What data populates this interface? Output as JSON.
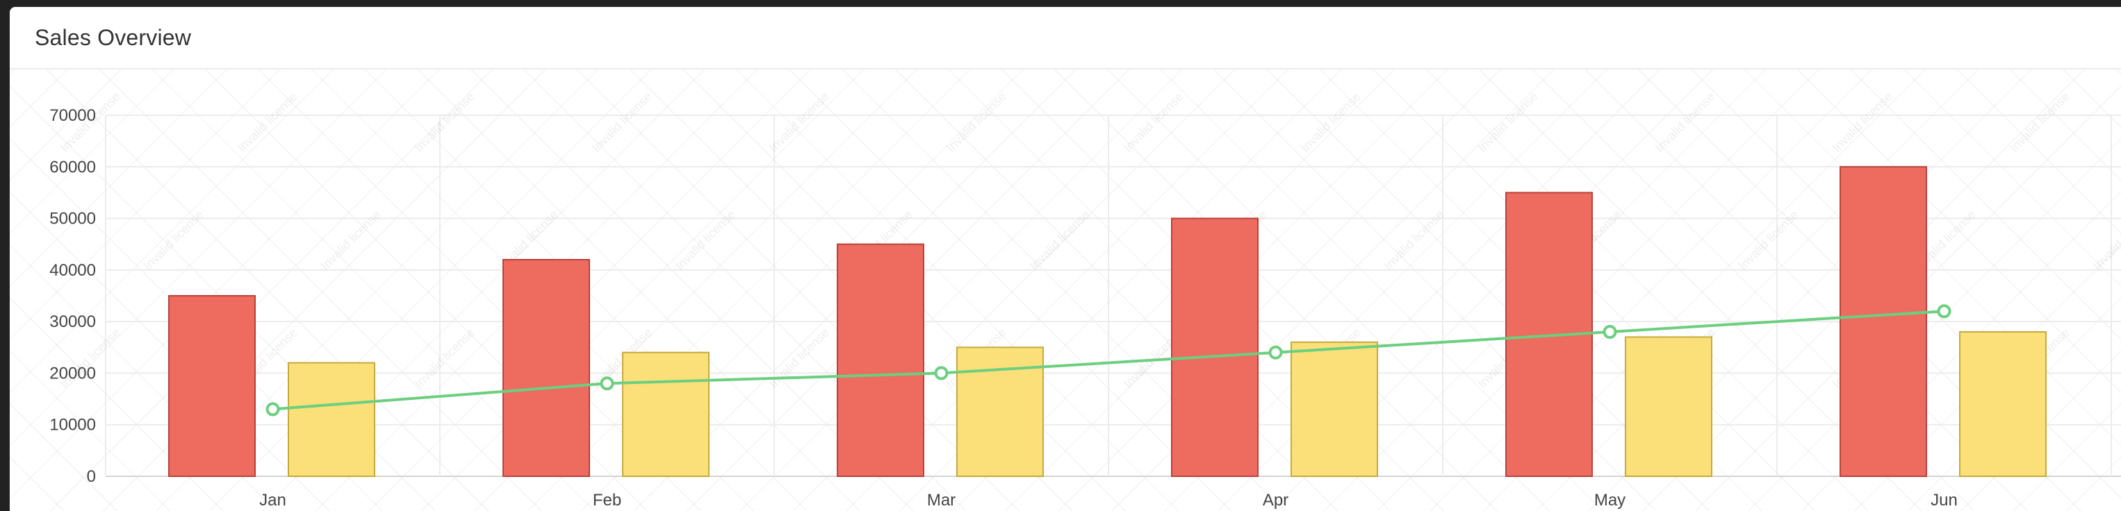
{
  "card": {
    "title": "Sales Overview"
  },
  "chart_data": {
    "type": "bar",
    "categories": [
      "Jan",
      "Feb",
      "Mar",
      "Apr",
      "May",
      "Jun"
    ],
    "series": [
      {
        "kind": "bar",
        "color": "#ee6b5f",
        "stroke": "#b8423a",
        "values": [
          35000,
          42000,
          45000,
          50000,
          55000,
          60000
        ]
      },
      {
        "kind": "bar",
        "color": "#fbe07a",
        "stroke": "#c7a93a",
        "values": [
          22000,
          24000,
          25000,
          26000,
          27000,
          28000
        ]
      },
      {
        "kind": "line",
        "color": "#6ccf7f",
        "values": [
          13000,
          18000,
          20000,
          24000,
          28000,
          32000
        ]
      }
    ],
    "ylim": [
      0,
      70000
    ],
    "yticks": [
      "0",
      "10000",
      "20000",
      "30000",
      "40000",
      "50000",
      "60000",
      "70000"
    ],
    "grid": true,
    "watermark": "Invalid license"
  }
}
